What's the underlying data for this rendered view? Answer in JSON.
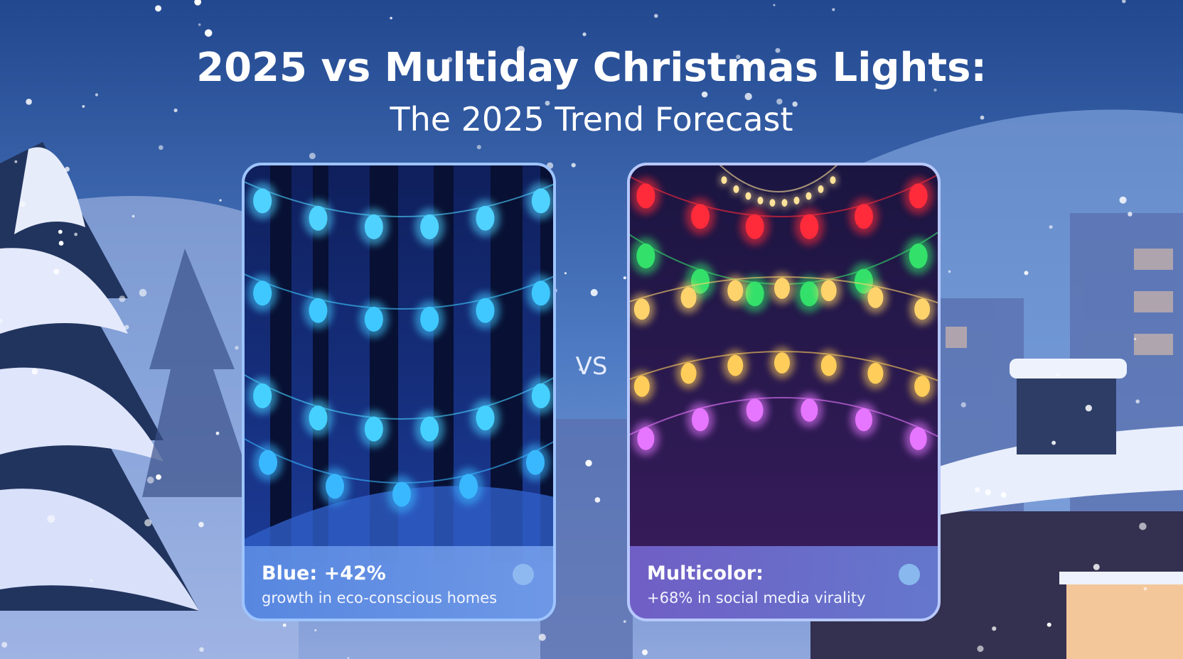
{
  "header": {
    "title": "2025 vs Multiday Christmas Lights:",
    "subtitle": "The 2025 Trend Forecast"
  },
  "vs_label": "VS",
  "cards": [
    {
      "heading": "Blue: +42%",
      "caption": "growth in eco-conscious homes"
    },
    {
      "heading": "Multicolor:",
      "caption": "+68% in social media virality"
    }
  ]
}
